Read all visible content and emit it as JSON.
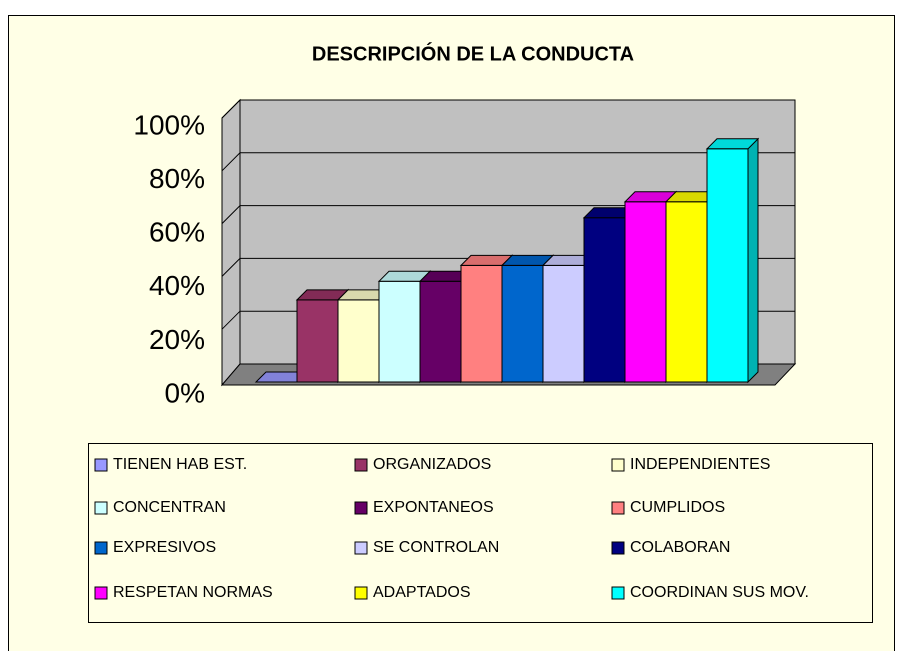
{
  "chart_data": {
    "type": "bar3d",
    "title": "DESCRIPCIÓN DE LA CONDUCTA",
    "ylim": [
      0,
      100
    ],
    "yticks": [
      {
        "value": 0,
        "label": "0%"
      },
      {
        "value": 20,
        "label": "20%"
      },
      {
        "value": 40,
        "label": "40%"
      },
      {
        "value": 60,
        "label": "60%"
      },
      {
        "value": 80,
        "label": "80%"
      },
      {
        "value": 100,
        "label": "100%"
      }
    ],
    "grid": true,
    "legend": "bottom",
    "series": [
      {
        "name": "TIENEN HAB EST.",
        "color": "#9999ff",
        "values": [
          0
        ]
      },
      {
        "name": "ORGANIZADOS",
        "color": "#993366",
        "values": [
          31
        ]
      },
      {
        "name": "INDEPENDIENTES",
        "color": "#ffffcc",
        "values": [
          31
        ]
      },
      {
        "name": "CONCENTRAN",
        "color": "#ccffff",
        "values": [
          38
        ]
      },
      {
        "name": "EXPONTANEOS",
        "color": "#660066",
        "values": [
          38
        ]
      },
      {
        "name": "CUMPLIDOS",
        "color": "#ff8080",
        "values": [
          44
        ]
      },
      {
        "name": "EXPRESIVOS",
        "color": "#0066cc",
        "values": [
          44
        ]
      },
      {
        "name": "SE CONTROLAN",
        "color": "#ccccff",
        "values": [
          44
        ]
      },
      {
        "name": "COLABORAN",
        "color": "#000080",
        "values": [
          62
        ]
      },
      {
        "name": "RESPETAN NORMAS",
        "color": "#ff00ff",
        "values": [
          68
        ]
      },
      {
        "name": "ADAPTADOS",
        "color": "#ffff00",
        "values": [
          68
        ]
      },
      {
        "name": "COORDINAN SUS MOV.",
        "color": "#00ffff",
        "values": [
          88
        ]
      }
    ]
  }
}
